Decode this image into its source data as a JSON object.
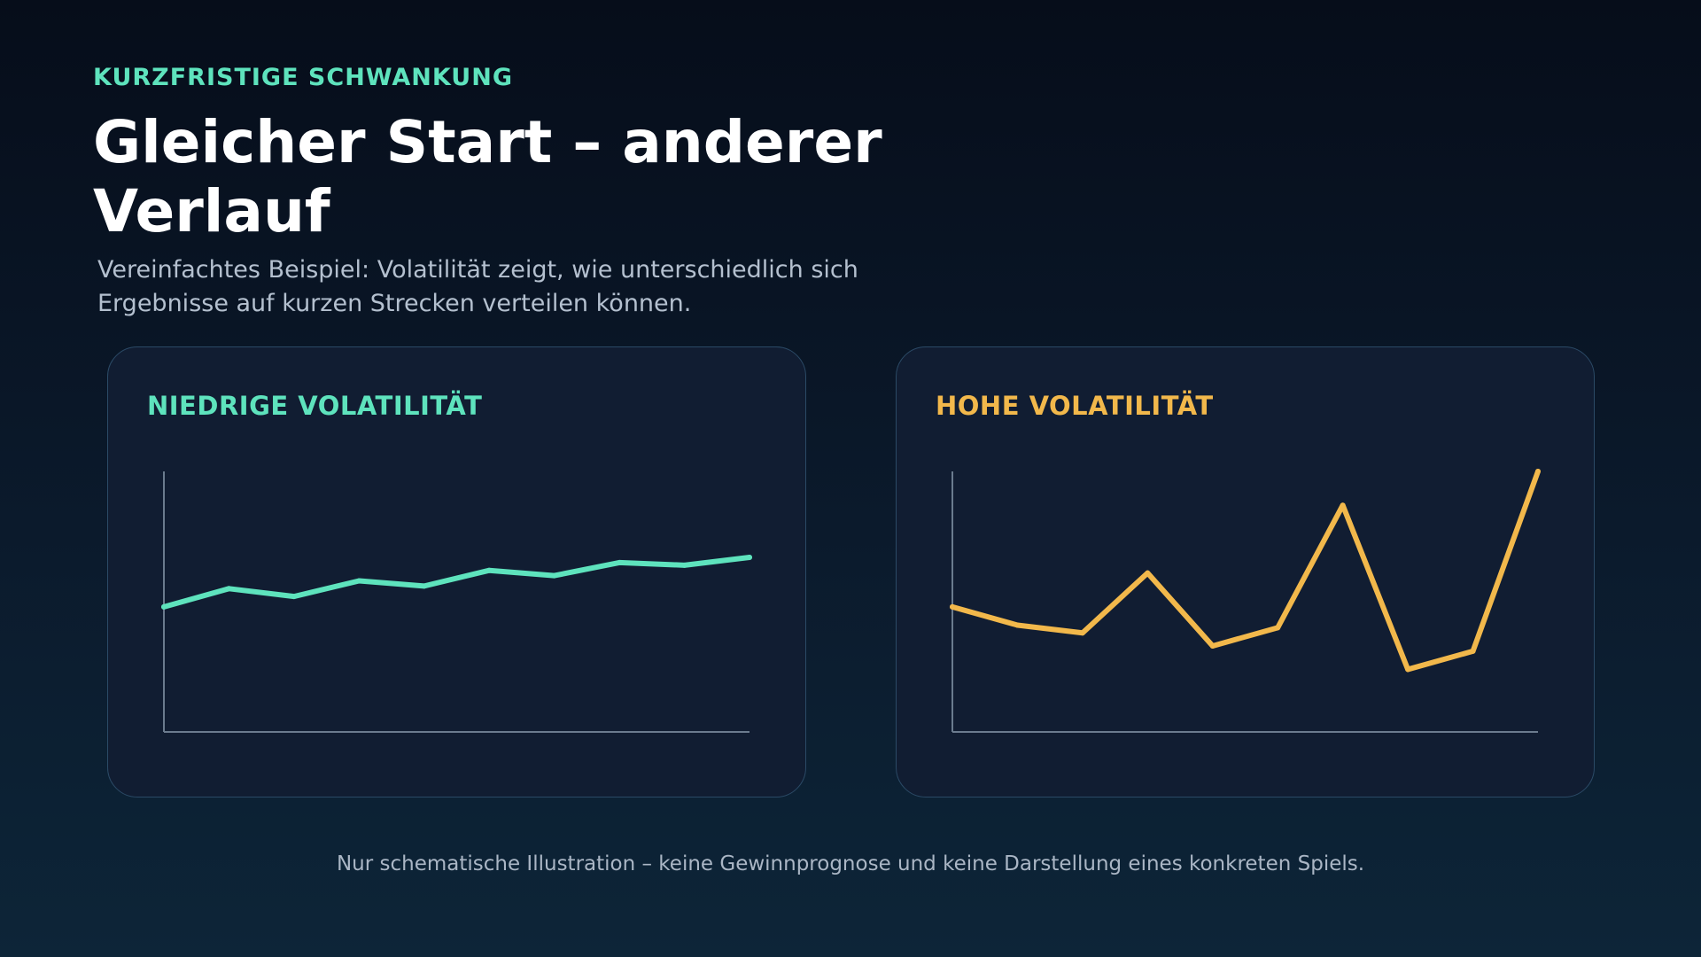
{
  "header": {
    "eyebrow": "KURZFRISTIGE SCHWANKUNG",
    "title": "Gleicher Start – anderer Verlauf",
    "subtitle": "Vereinfachtes Beispiel: Volatilität zeigt, wie unterschiedlich sich Ergebnisse auf kurzen Strecken verteilen können."
  },
  "footer": {
    "note": "Nur schematische Illustration – keine Gewinnprognose und keine Darstellung eines konkreten Spiels."
  },
  "chart_data": [
    {
      "type": "line",
      "title": "NIEDRIGE VOLATILITÄT",
      "color": "#5ee3bd",
      "axis_color": "#6b7b8e",
      "grid": false,
      "xlim": [
        0,
        9
      ],
      "ylim": [
        0,
        100
      ],
      "x": [
        0,
        1,
        2,
        3,
        4,
        5,
        6,
        7,
        8,
        9
      ],
      "values": [
        48,
        55,
        52,
        58,
        56,
        62,
        60,
        65,
        64,
        67
      ]
    },
    {
      "type": "line",
      "title": "HOHE VOLATILITÄT",
      "color": "#f2b84b",
      "axis_color": "#6b7b8e",
      "grid": false,
      "xlim": [
        0,
        9
      ],
      "ylim": [
        0,
        100
      ],
      "x": [
        0,
        1,
        2,
        3,
        4,
        5,
        6,
        7,
        8,
        9
      ],
      "values": [
        48,
        41,
        38,
        61,
        33,
        40,
        87,
        24,
        31,
        100
      ]
    }
  ]
}
